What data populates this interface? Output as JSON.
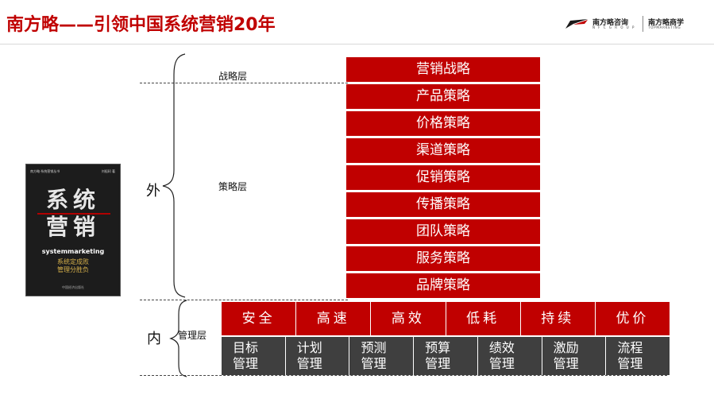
{
  "header": {
    "title": "南方略——引领中国系统营销20年",
    "logo": {
      "brand1_cn": "南方略咨询",
      "brand1_en": "N F C   G R O U P",
      "brand2_cn": "南方略商学",
      "brand2_en": "TOPMARKETING"
    }
  },
  "book": {
    "series": "南方略·系统营销丛书",
    "author": "刘祖轲 著",
    "title_line1": "系统",
    "title_line2": "营销",
    "title_en": "systemmarketing",
    "subtitle_line1": "系统定成败",
    "subtitle_line2": "管理分胜负",
    "publisher": "中国经济出版社"
  },
  "diagram": {
    "outer_label": "外",
    "inner_label": "内",
    "layer_strategic": "战略层",
    "layer_tactic": "策略层",
    "layer_management": "管理层",
    "strategies": [
      "营销战略",
      "产品策略",
      "价格策略",
      "渠道策略",
      "促销策略",
      "传播策略",
      "团队策略",
      "服务策略",
      "品牌策略"
    ],
    "qualities": [
      "安全",
      "高速",
      "高效",
      "低耗",
      "持续",
      "优价"
    ],
    "management": [
      "目标\n管理",
      "计划\n管理",
      "预测\n管理",
      "预算\n管理",
      "绩效\n管理",
      "激励\n管理",
      "流程\n管理"
    ]
  },
  "colors": {
    "brand_red": "#c00000",
    "dark_gray": "#3f3f3f"
  }
}
